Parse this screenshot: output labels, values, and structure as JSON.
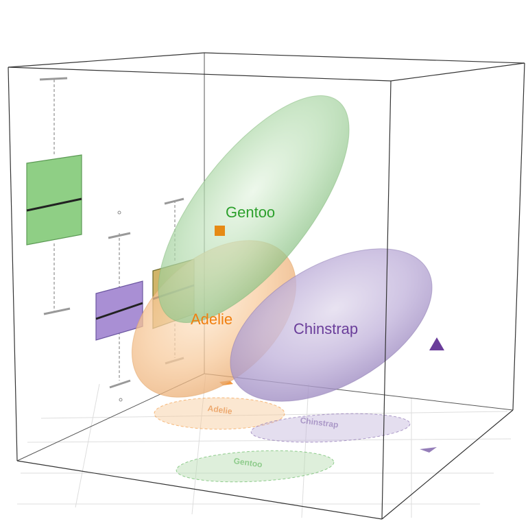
{
  "chart_data": {
    "type": "scatter",
    "title": "",
    "colors": {
      "Adelie": "#f28e2b",
      "Chinstrap": "#7b5ea7",
      "Gentoo": "#4daf4a"
    },
    "groups": [
      {
        "name": "Adelie",
        "label": "Adelie",
        "floor_label": "Adelie"
      },
      {
        "name": "Chinstrap",
        "label": "Chinstrap",
        "floor_label": "Chinstrap"
      },
      {
        "name": "Gentoo",
        "label": "Gentoo",
        "floor_label": "Gentoo"
      }
    ],
    "outliers": [
      {
        "group": "Adelie",
        "marker": "square"
      },
      {
        "group": "Chinstrap",
        "marker": "triangle"
      }
    ],
    "boxplots": [
      {
        "group": "Gentoo"
      },
      {
        "group": "Chinstrap"
      },
      {
        "group": "Adelie"
      }
    ],
    "grid": true,
    "box_frame": true
  }
}
